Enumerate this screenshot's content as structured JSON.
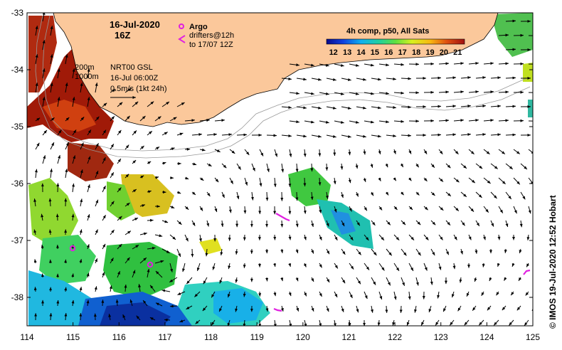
{
  "map": {
    "date_title": "16-Jul-2020",
    "time_title": "16Z",
    "legend": {
      "argo_label": "Argo",
      "drifters_label_1": "drifters@12h",
      "drifters_label_2": "to 17/07 12Z"
    },
    "contours": {
      "c200": "200m",
      "c1000": "1000m"
    },
    "model": {
      "line1": "NRT00 GSL",
      "line2": "16-Jul 06:00Z",
      "line3": "0.5m/s (1kt 24h)"
    },
    "colorbar": {
      "title": "4h comp, p50, All Sats",
      "ticks": [
        "12",
        "13",
        "14",
        "15",
        "16",
        "17",
        "18",
        "19",
        "20",
        "21"
      ],
      "min": 11.5,
      "max": 21.5
    },
    "credit": "© IMOS 19-Jul-2020 12:52 Hobart",
    "x_ticks": [
      "114",
      "115",
      "116",
      "117",
      "118",
      "119",
      "120",
      "121",
      "122",
      "123",
      "124",
      "125"
    ],
    "y_ticks": [
      "-33",
      "-34",
      "-35",
      "-36",
      "-37",
      "-38"
    ],
    "lon_range": [
      114,
      125
    ],
    "lat_range": [
      -33,
      -38.5
    ],
    "colors": {
      "land": "#fbc89b",
      "argo": "#e020e0",
      "drifter": "#e020e0"
    }
  }
}
